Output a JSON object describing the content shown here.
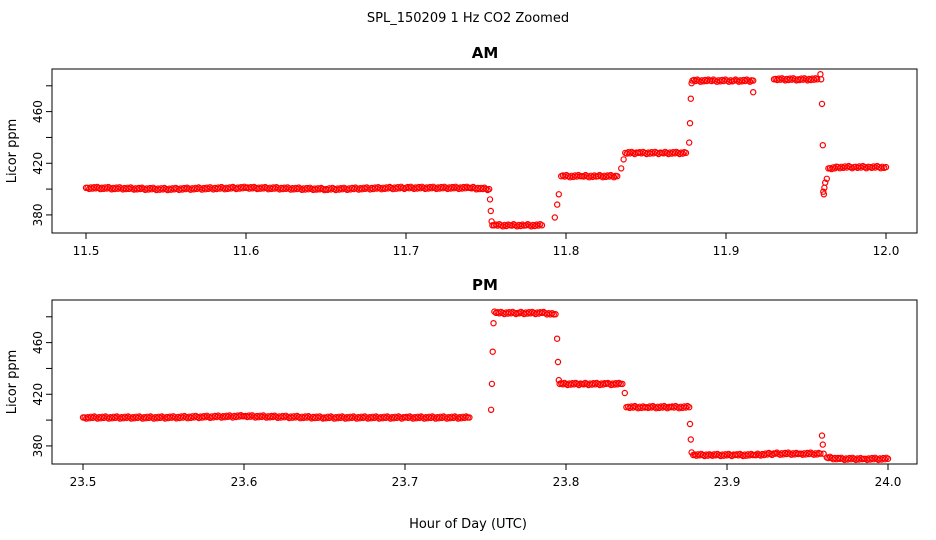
{
  "figure": {
    "title": "SPL_150209  1 Hz CO2 Zoomed",
    "xlabel": "Hour of Day (UTC)"
  },
  "chart_data": [
    {
      "type": "scatter",
      "title": "AM",
      "xlabel": "",
      "ylabel": "Licor ppm",
      "xlim": [
        11.5,
        12.0
      ],
      "ylim": [
        366,
        493
      ],
      "x_ticks": [
        "11.5",
        "11.6",
        "11.7",
        "11.8",
        "11.9",
        "12.0"
      ],
      "y_ticks": [
        "380",
        "420",
        "460"
      ],
      "marker": "open-circle",
      "color": "#ff0000",
      "series": [
        {
          "x": [
            11.5,
            11.55,
            11.6,
            11.65,
            11.7,
            11.74,
            11.752,
            11.7525,
            11.753,
            11.7535,
            11.754,
            11.755,
            11.765,
            11.775,
            11.785,
            11.793,
            11.7945,
            11.7955,
            11.797,
            11.81,
            11.82,
            11.832,
            11.8345,
            11.836,
            11.837,
            11.845,
            11.86,
            11.875,
            11.877,
            11.8775,
            11.878,
            11.8785,
            11.879,
            11.89,
            11.905,
            11.917,
            11.917,
            11.93,
            11.945,
            11.957,
            11.959,
            11.9595,
            11.96,
            11.9605,
            11.9608,
            11.9612,
            11.9615,
            11.962,
            11.963,
            11.964,
            11.97,
            11.98,
            11.99,
            12.0
          ],
          "y": [
            401,
            400,
            401,
            400,
            401,
            401,
            400,
            392,
            383,
            375,
            372,
            372,
            372,
            372,
            372,
            378,
            388,
            396,
            410,
            410,
            410,
            410,
            416,
            423,
            428,
            428,
            428,
            428,
            436,
            451,
            470,
            482,
            484,
            484,
            484,
            484,
            475,
            485,
            485,
            485,
            489,
            485,
            466,
            434,
            398,
            396,
            401,
            405,
            408,
            416,
            417,
            417,
            417,
            417
          ]
        }
      ]
    },
    {
      "type": "scatter",
      "title": "PM",
      "xlabel": "",
      "ylabel": "Licor ppm",
      "xlim": [
        23.5,
        24.0
      ],
      "ylim": [
        366,
        493
      ],
      "x_ticks": [
        "23.5",
        "23.6",
        "23.7",
        "23.8",
        "23.9",
        "24.0"
      ],
      "y_ticks": [
        "380",
        "420",
        "460"
      ],
      "marker": "open-circle",
      "color": "#ff0000",
      "series": [
        {
          "x": [
            23.5,
            23.55,
            23.6,
            23.65,
            23.7,
            23.74,
            23.7535,
            23.754,
            23.7545,
            23.755,
            23.7555,
            23.7565,
            23.77,
            23.785,
            23.7935,
            23.7945,
            23.795,
            23.7955,
            23.796,
            23.81,
            23.825,
            23.835,
            23.8365,
            23.8375,
            23.85,
            23.865,
            23.8765,
            23.877,
            23.8775,
            23.878,
            23.879,
            23.89,
            23.905,
            23.917,
            23.93,
            23.945,
            23.958,
            23.959,
            23.9595,
            23.96,
            23.962,
            23.97,
            23.985,
            24.0
          ],
          "y": [
            402,
            402,
            403,
            402,
            402,
            402,
            408,
            428,
            453,
            475,
            484,
            483,
            483,
            483,
            482,
            463,
            445,
            431,
            428,
            428,
            428,
            428,
            421,
            410,
            410,
            410,
            410,
            397,
            385,
            375,
            373,
            373,
            373,
            373,
            374,
            374,
            374,
            388,
            381,
            374,
            371,
            370,
            370,
            370
          ]
        }
      ]
    }
  ]
}
